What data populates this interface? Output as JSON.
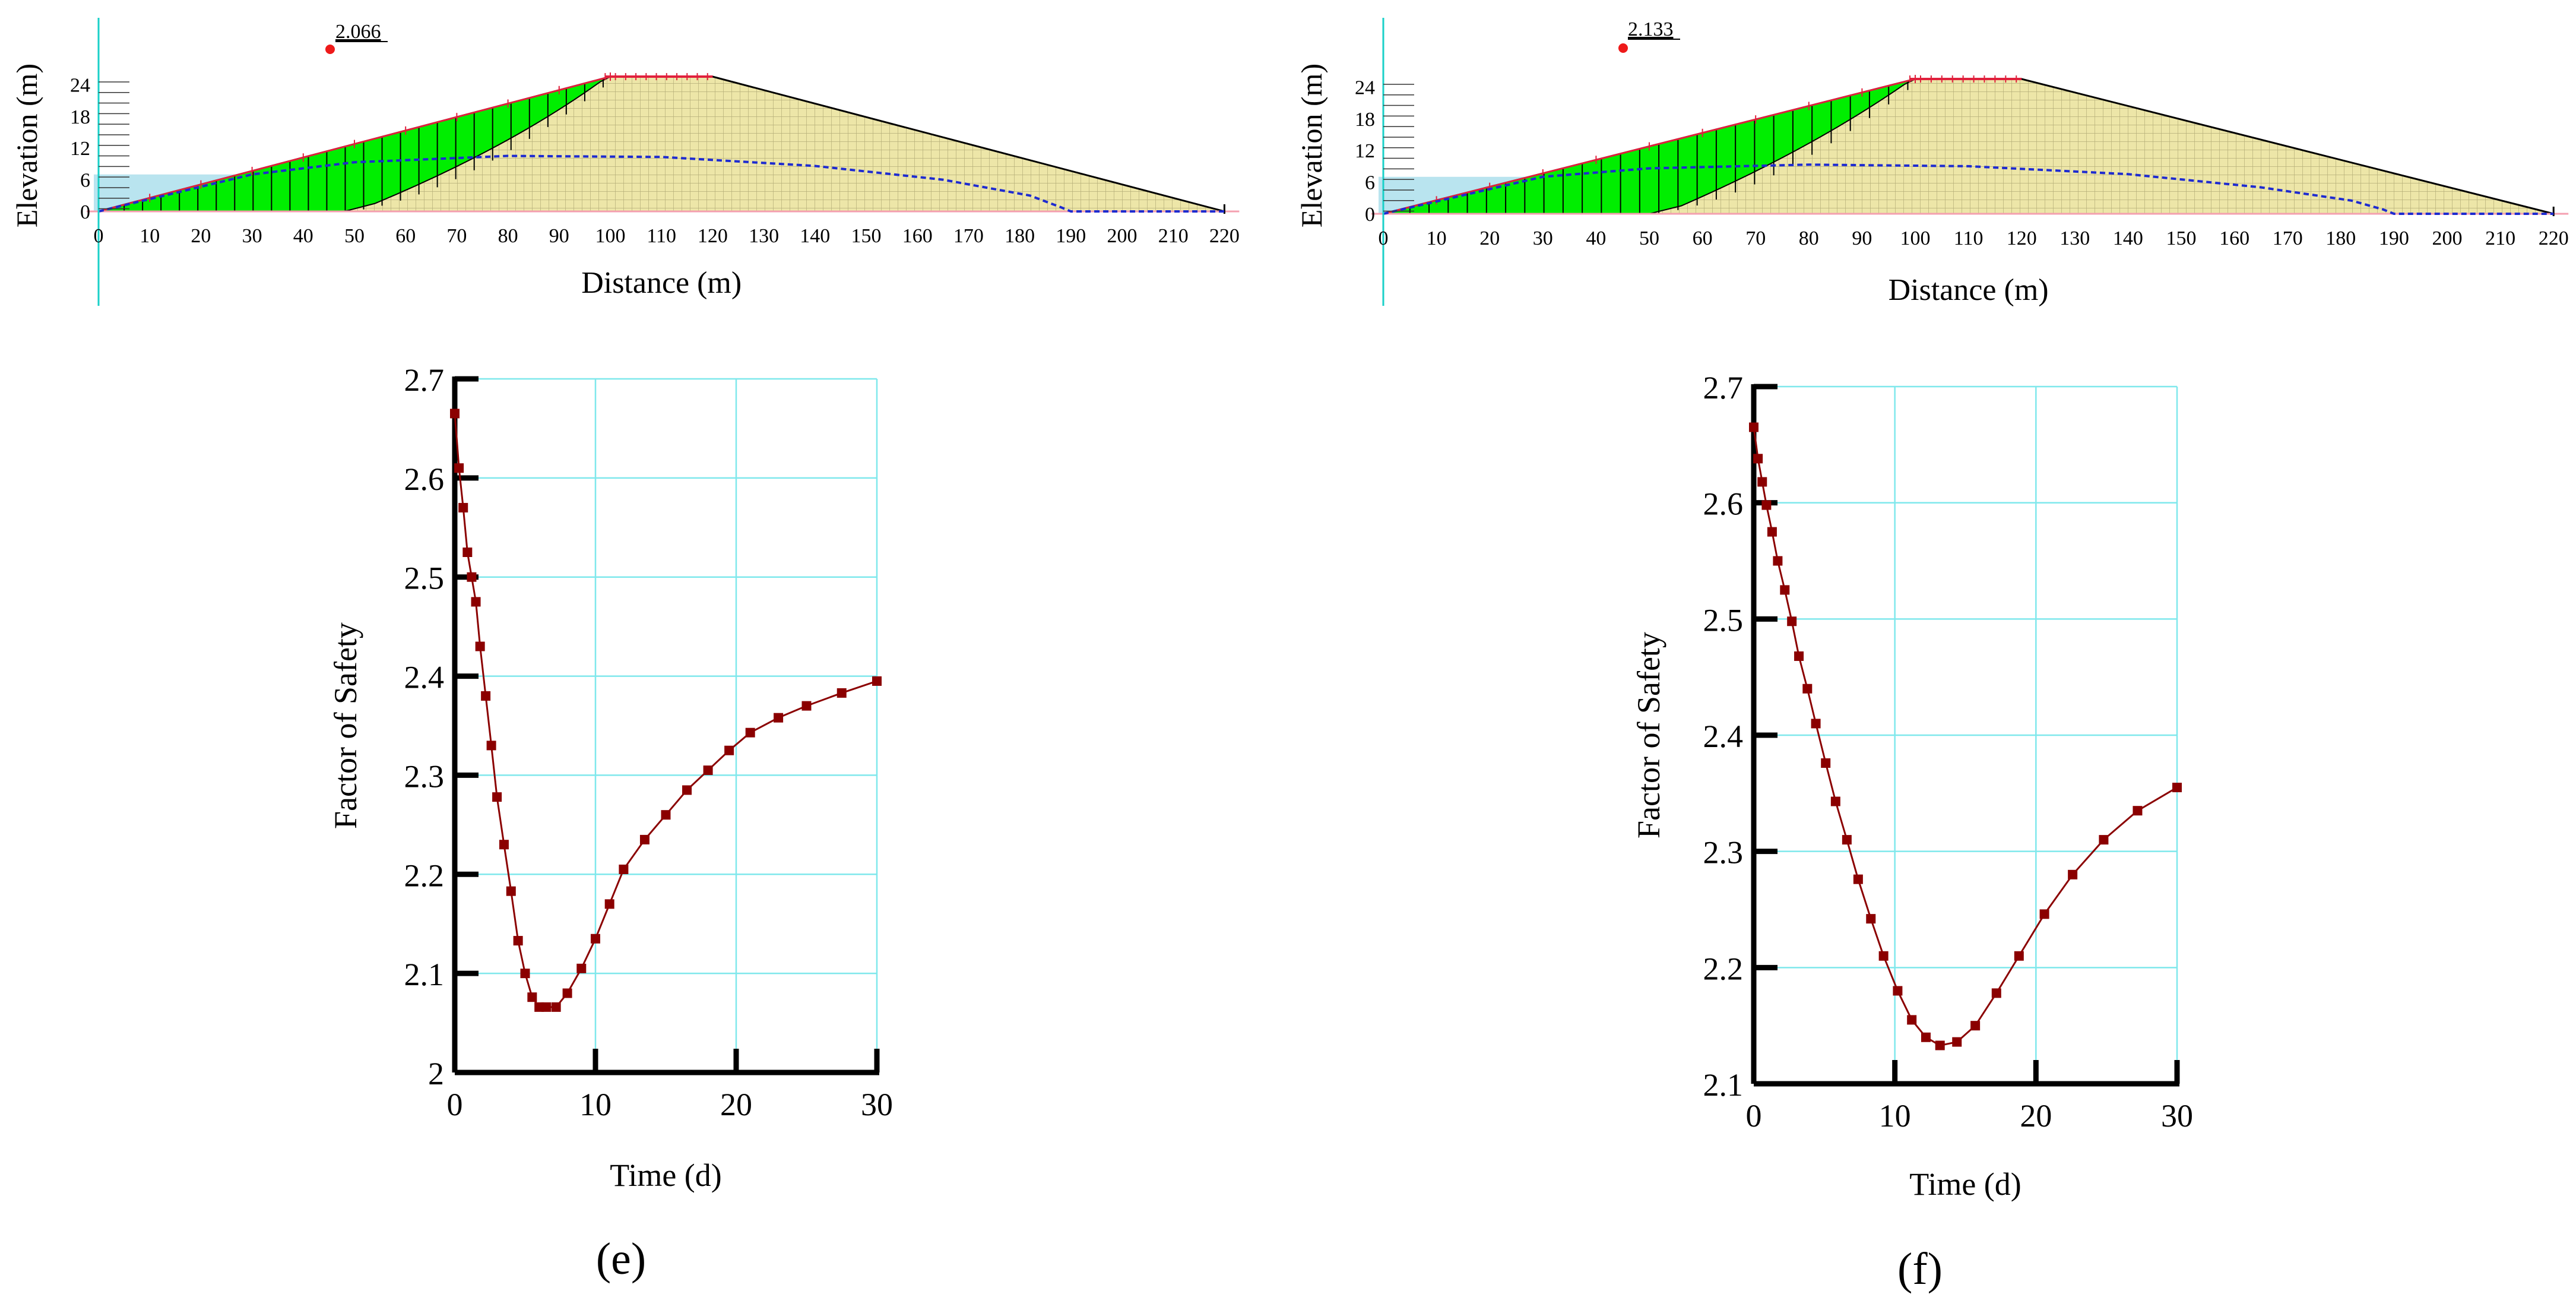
{
  "panels": [
    {
      "panel_label": "(e)",
      "section": {
        "fos_value": "2.066",
        "elevation_label": "Elevation (m)",
        "distance_label": "Distance (m)",
        "elev_ticks": [
          "0",
          "6",
          "12",
          "18",
          "24"
        ],
        "dist_ticks": [
          "0",
          "10",
          "20",
          "30",
          "40",
          "50",
          "60",
          "70",
          "80",
          "90",
          "100",
          "110",
          "120",
          "130",
          "140",
          "150",
          "160",
          "170",
          "180",
          "190",
          "200",
          "210",
          "220"
        ],
        "water_level_m": 7,
        "phreatic_line": [
          [
            0,
            0
          ],
          [
            15,
            3.5
          ],
          [
            30,
            7
          ],
          [
            50,
            9.3
          ],
          [
            80,
            10.5
          ],
          [
            110,
            10.3
          ],
          [
            140,
            8.6
          ],
          [
            165,
            6
          ],
          [
            182,
            3
          ],
          [
            188,
            0.8
          ],
          [
            190,
            0
          ],
          [
            220,
            0
          ]
        ],
        "slip_toe_x": 48
      },
      "chart_data": {
        "type": "line",
        "title": "",
        "xlabel": "Time (d)",
        "ylabel": "Factor of Safety",
        "xlim": [
          0,
          30
        ],
        "ylim": [
          2.0,
          2.7
        ],
        "xticks": [
          "0",
          "10",
          "20",
          "30"
        ],
        "yticks": [
          "2",
          "2.1",
          "2.2",
          "2.3",
          "2.4",
          "2.5",
          "2.6",
          "2.7"
        ],
        "series": [
          {
            "name": "Factor of Safety",
            "color": "#8b0000",
            "x": [
              0,
              0.3,
              0.6,
              0.9,
              1.2,
              1.5,
              1.8,
              2.2,
              2.6,
              3.0,
              3.5,
              4.0,
              4.5,
              5.0,
              5.5,
              6.0,
              6.5,
              7.2,
              8.0,
              9.0,
              10.0,
              11.0,
              12.0,
              13.5,
              15.0,
              16.5,
              18.0,
              19.5,
              21.0,
              23.0,
              25.0,
              27.5,
              30.0
            ],
            "values": [
              2.665,
              2.61,
              2.57,
              2.525,
              2.5,
              2.475,
              2.43,
              2.38,
              2.33,
              2.278,
              2.23,
              2.183,
              2.133,
              2.1,
              2.076,
              2.066,
              2.066,
              2.066,
              2.08,
              2.105,
              2.135,
              2.17,
              2.205,
              2.235,
              2.26,
              2.285,
              2.305,
              2.325,
              2.343,
              2.358,
              2.37,
              2.383,
              2.395
            ]
          }
        ]
      }
    },
    {
      "panel_label": "(f)",
      "section": {
        "fos_value": "2.133",
        "elevation_label": "Elevation (m)",
        "distance_label": "Distance (m)",
        "elev_ticks": [
          "0",
          "6",
          "12",
          "18",
          "24"
        ],
        "dist_ticks": [
          "0",
          "10",
          "20",
          "30",
          "40",
          "50",
          "60",
          "70",
          "80",
          "90",
          "100",
          "110",
          "120",
          "130",
          "140",
          "150",
          "160",
          "170",
          "180",
          "190",
          "200",
          "210",
          "220"
        ],
        "water_level_m": 7,
        "phreatic_line": [
          [
            0,
            0
          ],
          [
            15,
            3.5
          ],
          [
            30,
            7
          ],
          [
            50,
            8.6
          ],
          [
            80,
            9.3
          ],
          [
            110,
            9.0
          ],
          [
            140,
            7.5
          ],
          [
            165,
            5
          ],
          [
            182,
            2.5
          ],
          [
            188,
            0.8
          ],
          [
            190,
            0
          ],
          [
            220,
            0
          ]
        ],
        "slip_toe_x": 50
      },
      "chart_data": {
        "type": "line",
        "title": "",
        "xlabel": "Time (d)",
        "ylabel": "Factor of Safety",
        "xlim": [
          0,
          30
        ],
        "ylim": [
          2.1,
          2.7
        ],
        "xticks": [
          "0",
          "10",
          "20",
          "30"
        ],
        "yticks": [
          "2.1",
          "2.2",
          "2.3",
          "2.4",
          "2.5",
          "2.6",
          "2.7"
        ],
        "series": [
          {
            "name": "Factor of Safety",
            "color": "#8b0000",
            "x": [
              0,
              0.3,
              0.6,
              0.9,
              1.3,
              1.7,
              2.2,
              2.7,
              3.2,
              3.8,
              4.4,
              5.1,
              5.8,
              6.6,
              7.4,
              8.3,
              9.2,
              10.2,
              11.2,
              12.2,
              13.2,
              14.4,
              15.7,
              17.2,
              18.8,
              20.6,
              22.6,
              24.8,
              27.2,
              30.0
            ],
            "values": [
              2.665,
              2.638,
              2.618,
              2.598,
              2.575,
              2.55,
              2.525,
              2.498,
              2.468,
              2.44,
              2.41,
              2.376,
              2.343,
              2.31,
              2.276,
              2.242,
              2.21,
              2.18,
              2.155,
              2.14,
              2.133,
              2.136,
              2.15,
              2.178,
              2.21,
              2.246,
              2.28,
              2.31,
              2.335,
              2.355
            ]
          }
        ]
      }
    }
  ]
}
